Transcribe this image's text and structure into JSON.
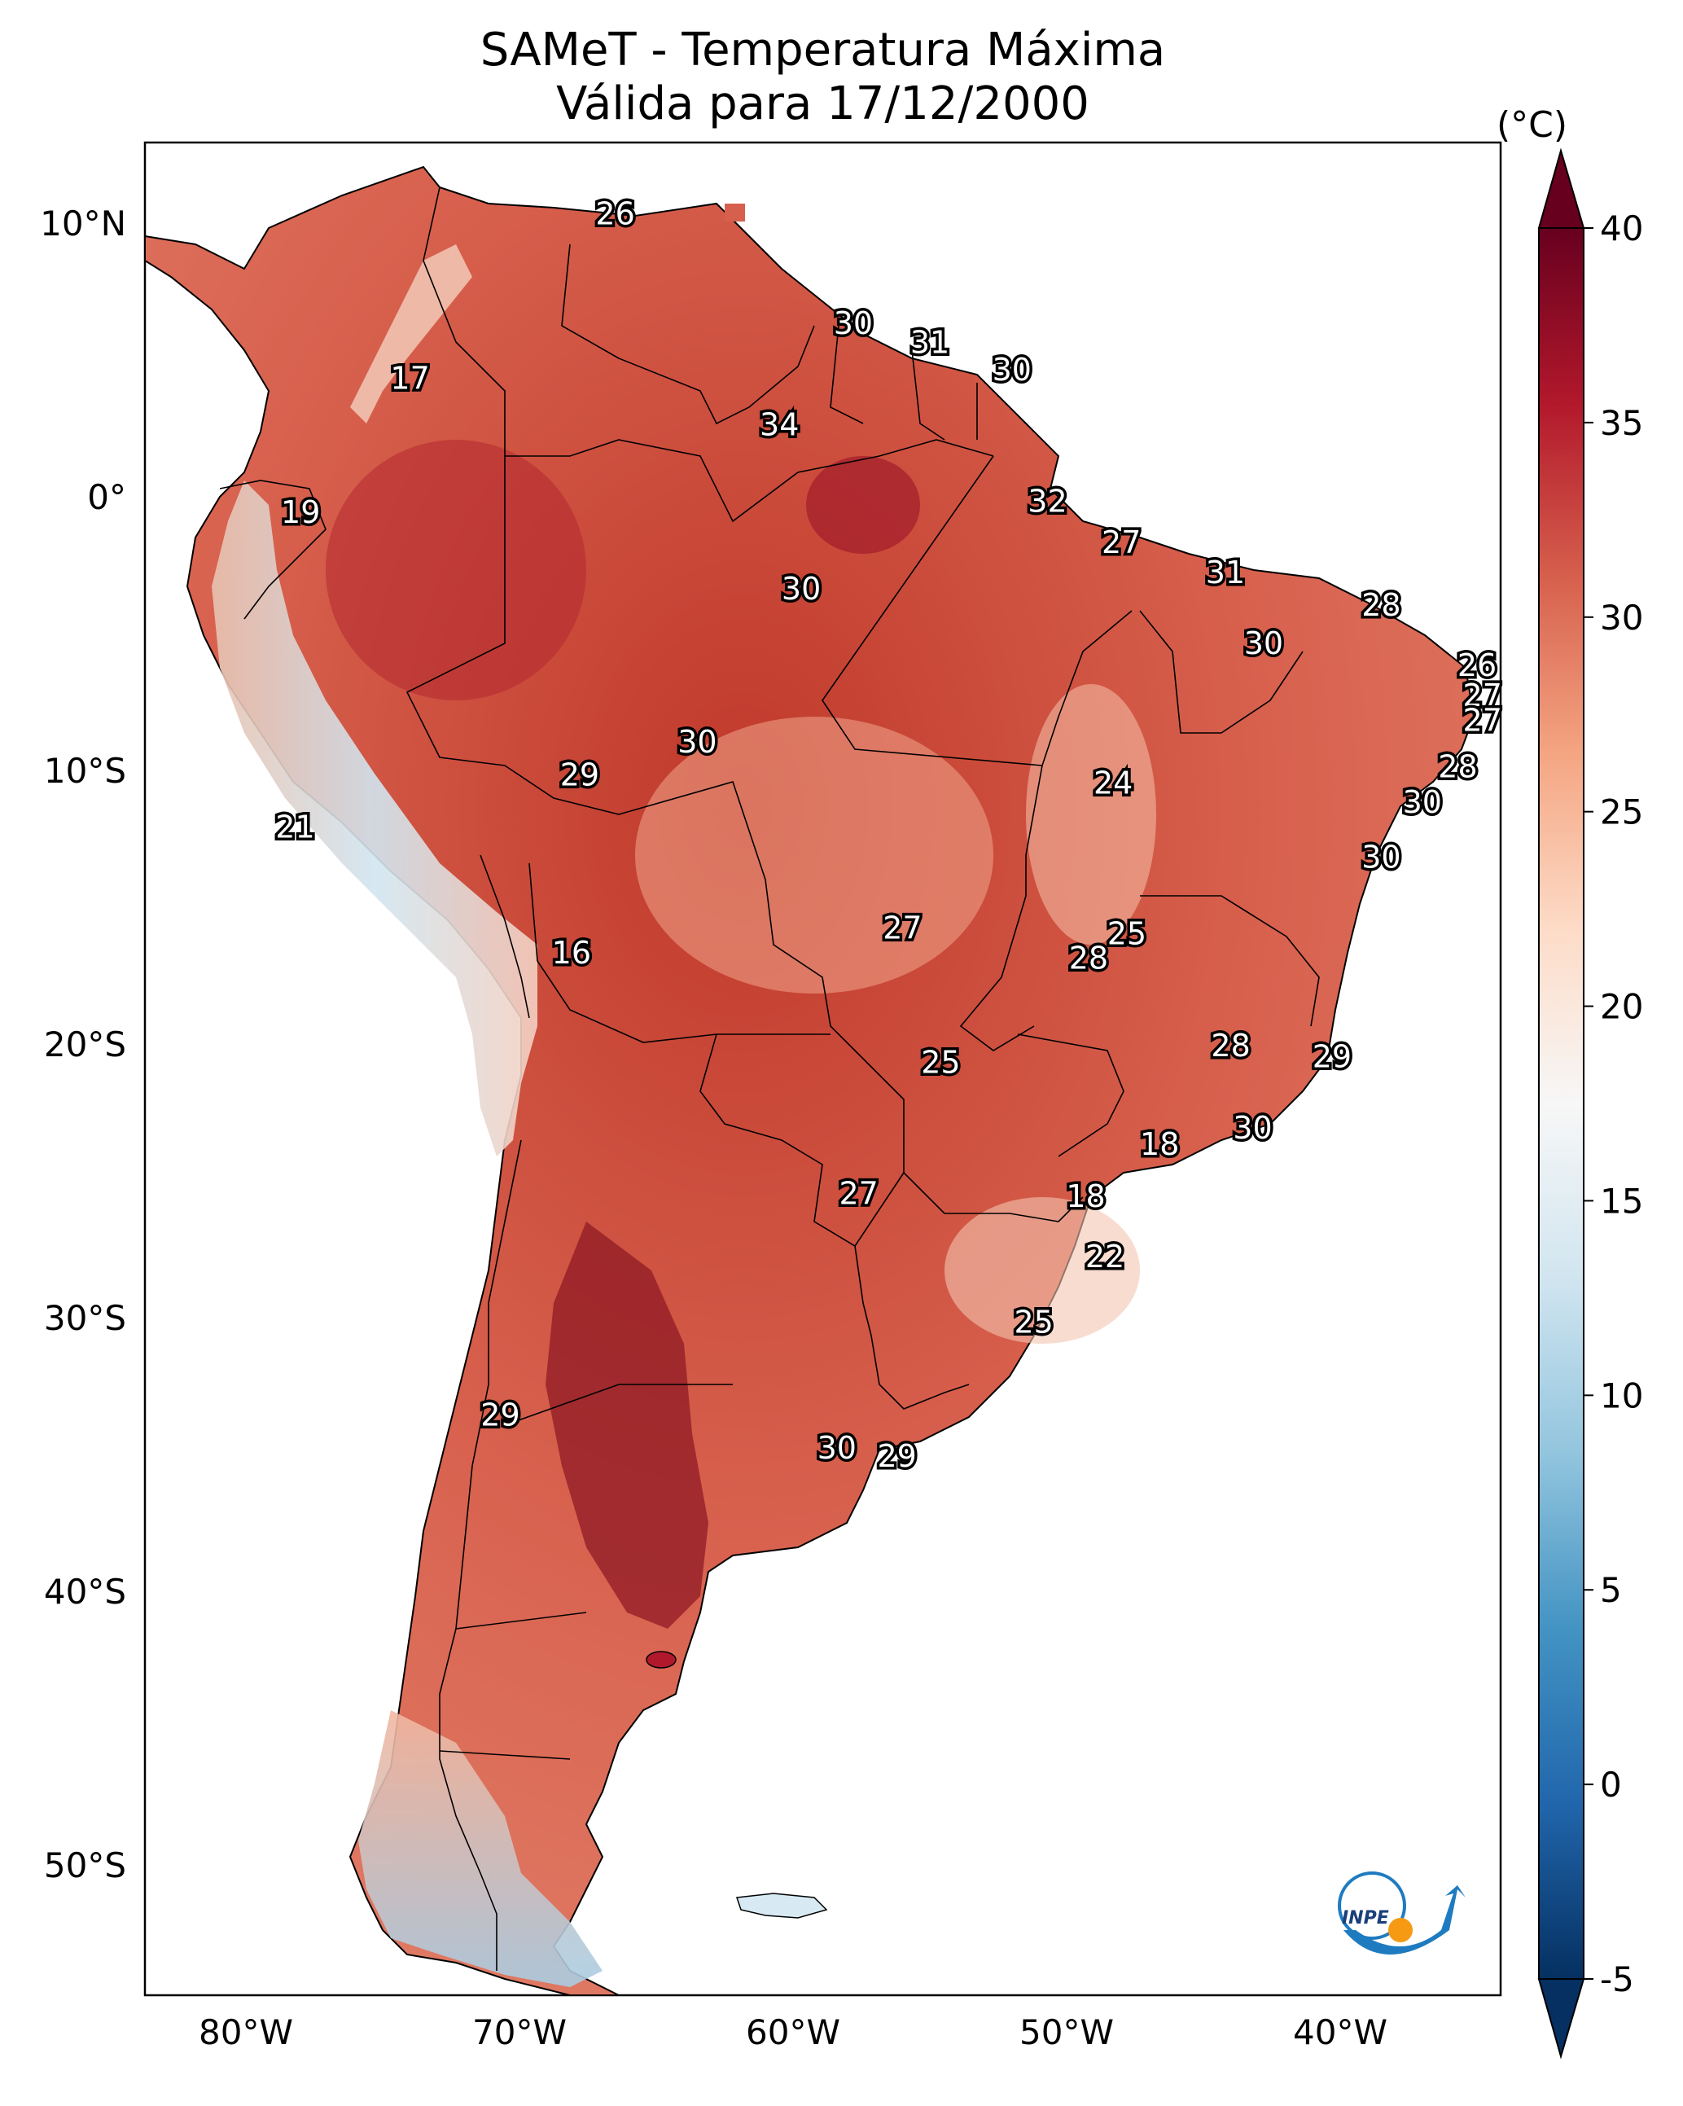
{
  "title": {
    "line1": "SAMeT - Temperatura Máxima",
    "line2": "Válida para 17/12/2000"
  },
  "colorbar": {
    "unit": "(°C)",
    "min": -5,
    "max": 40,
    "ticks": [
      "-5",
      "0",
      "5",
      "10",
      "15",
      "20",
      "25",
      "30",
      "35",
      "40"
    ],
    "colors": [
      "#053061",
      "#2166ac",
      "#4393c3",
      "#92c5de",
      "#d1e5f0",
      "#f7f7f7",
      "#fddbc7",
      "#f4a582",
      "#d6604d",
      "#b2182b",
      "#67001f"
    ]
  },
  "axes": {
    "lon_ticks": [
      "80°W",
      "70°W",
      "60°W",
      "50°W",
      "40°W"
    ],
    "lat_ticks": [
      "10°N",
      "0°",
      "10°S",
      "20°S",
      "30°S",
      "40°S",
      "50°S"
    ]
  },
  "station_values": [
    {
      "lon": -66.5,
      "lat": 10.5,
      "value": "26"
    },
    {
      "lon": -74.0,
      "lat": 4.5,
      "value": "17"
    },
    {
      "lon": -57.8,
      "lat": 6.5,
      "value": "30"
    },
    {
      "lon": -55.0,
      "lat": 5.8,
      "value": "31"
    },
    {
      "lon": -52.0,
      "lat": 4.8,
      "value": "30"
    },
    {
      "lon": -60.5,
      "lat": 2.8,
      "value": "34"
    },
    {
      "lon": -78.0,
      "lat": -0.4,
      "value": "19"
    },
    {
      "lon": -50.7,
      "lat": 0.0,
      "value": "32"
    },
    {
      "lon": -48.0,
      "lat": -1.5,
      "value": "27"
    },
    {
      "lon": -59.7,
      "lat": -3.2,
      "value": "30"
    },
    {
      "lon": -44.2,
      "lat": -2.6,
      "value": "31"
    },
    {
      "lon": -38.5,
      "lat": -3.8,
      "value": "28"
    },
    {
      "lon": -42.8,
      "lat": -5.2,
      "value": "30"
    },
    {
      "lon": -35.0,
      "lat": -6.0,
      "value": "26"
    },
    {
      "lon": -34.8,
      "lat": -7.1,
      "value": "27"
    },
    {
      "lon": -34.8,
      "lat": -8.0,
      "value": "27"
    },
    {
      "lon": -63.5,
      "lat": -8.8,
      "value": "30"
    },
    {
      "lon": -35.7,
      "lat": -9.7,
      "value": "28"
    },
    {
      "lon": -67.8,
      "lat": -10.0,
      "value": "29"
    },
    {
      "lon": -48.3,
      "lat": -10.3,
      "value": "24"
    },
    {
      "lon": -37.0,
      "lat": -11.0,
      "value": "30"
    },
    {
      "lon": -78.2,
      "lat": -11.9,
      "value": "21"
    },
    {
      "lon": -38.5,
      "lat": -13.0,
      "value": "30"
    },
    {
      "lon": -56.0,
      "lat": -15.6,
      "value": "27"
    },
    {
      "lon": -47.8,
      "lat": -15.8,
      "value": "25"
    },
    {
      "lon": -49.2,
      "lat": -16.7,
      "value": "28"
    },
    {
      "lon": -68.1,
      "lat": -16.5,
      "value": "16"
    },
    {
      "lon": -44.0,
      "lat": -19.9,
      "value": "28"
    },
    {
      "lon": -40.3,
      "lat": -20.3,
      "value": "29"
    },
    {
      "lon": -54.6,
      "lat": -20.5,
      "value": "25"
    },
    {
      "lon": -43.2,
      "lat": -22.9,
      "value": "30"
    },
    {
      "lon": -46.6,
      "lat": -23.5,
      "value": "18"
    },
    {
      "lon": -57.6,
      "lat": -25.3,
      "value": "27"
    },
    {
      "lon": -49.3,
      "lat": -25.4,
      "value": "18"
    },
    {
      "lon": -48.6,
      "lat": -27.6,
      "value": "22"
    },
    {
      "lon": -51.2,
      "lat": -30.0,
      "value": "25"
    },
    {
      "lon": -70.7,
      "lat": -33.4,
      "value": "29"
    },
    {
      "lon": -58.4,
      "lat": -34.6,
      "value": "30"
    },
    {
      "lon": -56.2,
      "lat": -34.9,
      "value": "29"
    }
  ],
  "logo": {
    "text": "INPE"
  }
}
